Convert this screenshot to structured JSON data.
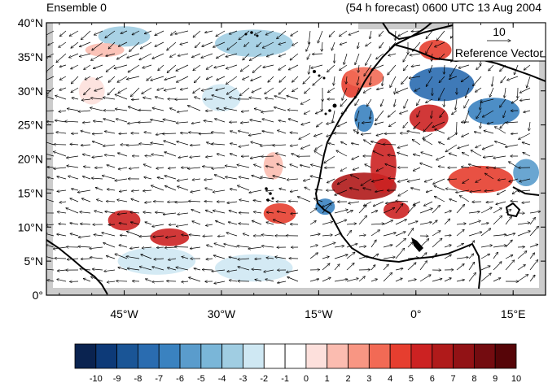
{
  "title_left": "Ensemble 0",
  "title_right": "(54 h forecast) 0600 UTC 13 Aug 2004",
  "reference_vector": {
    "value": "10",
    "label": "Reference Vector"
  },
  "axes": {
    "lat_ticks": [
      "40°N",
      "35°N",
      "30°N",
      "25°N",
      "20°N",
      "15°N",
      "10°N",
      "5°N",
      "0°"
    ],
    "lon_ticks": [
      "45°W",
      "30°W",
      "15°W",
      "0°",
      "15°E"
    ],
    "lon_range": [
      -57,
      20
    ],
    "lat_range": [
      0,
      40
    ]
  },
  "colorbar": {
    "labels": [
      "-10",
      "-9",
      "-8",
      "-7",
      "-6",
      "-5",
      "-4",
      "-3",
      "-2",
      "-1",
      "0",
      "1",
      "2",
      "3",
      "4",
      "5",
      "6",
      "7",
      "8",
      "9",
      "10"
    ],
    "colors": [
      "#0a2350",
      "#0d3a78",
      "#1a5596",
      "#2a6cb0",
      "#3a82c0",
      "#5a9ccc",
      "#7ab6d8",
      "#a0cde2",
      "#cfe8f3",
      "#ffffff",
      "#ffffff",
      "#fde0dc",
      "#fbbcb0",
      "#f89683",
      "#f26a55",
      "#e63e2f",
      "#cc2222",
      "#b01a1a",
      "#921215",
      "#740c10",
      "#560508"
    ]
  },
  "shaded_regions": [
    {
      "lon": -45,
      "lat": 11,
      "rlon": 2.5,
      "rlat": 1.5,
      "color": "#cc2222"
    },
    {
      "lon": -38,
      "lat": 8.5,
      "rlon": 3,
      "rlat": 1.3,
      "color": "#cc2222"
    },
    {
      "lon": -21,
      "lat": 12,
      "rlon": 2.5,
      "rlat": 1.5,
      "color": "#e63e2f"
    },
    {
      "lon": -10,
      "lat": 31,
      "rlon": 1.5,
      "rlat": 2,
      "color": "#e63e2f"
    },
    {
      "lon": -8,
      "lat": 16,
      "rlon": 5,
      "rlat": 2,
      "color": "#b01a1a"
    },
    {
      "lon": -5,
      "lat": 19,
      "rlon": 2,
      "rlat": 4,
      "color": "#cc2222"
    },
    {
      "lon": -3,
      "lat": 12.5,
      "rlon": 2,
      "rlat": 1.3,
      "color": "#cc2222"
    },
    {
      "lon": 2,
      "lat": 26,
      "rlon": 3,
      "rlat": 2,
      "color": "#cc2222"
    },
    {
      "lon": 10,
      "lat": 17,
      "rlon": 5,
      "rlat": 2,
      "color": "#e63e2f"
    },
    {
      "lon": -22,
      "lat": 19,
      "rlon": 1.5,
      "rlat": 2,
      "color": "#fbbcb0"
    },
    {
      "lon": -8,
      "lat": 32,
      "rlon": 3,
      "rlat": 1.5,
      "color": "#f26a55"
    },
    {
      "lon": 3,
      "lat": 36,
      "rlon": 2.5,
      "rlat": 1.5,
      "color": "#e63e2f"
    },
    {
      "lon": 4,
      "lat": 31,
      "rlon": 5,
      "rlat": 2.5,
      "color": "#2a6cb0"
    },
    {
      "lon": 12,
      "lat": 27,
      "rlon": 4,
      "rlat": 2,
      "color": "#3a82c0"
    },
    {
      "lon": -8,
      "lat": 26,
      "rlon": 1.5,
      "rlat": 2,
      "color": "#3a82c0"
    },
    {
      "lon": -14,
      "lat": 13,
      "rlon": 1.5,
      "rlat": 1.2,
      "color": "#3a82c0"
    },
    {
      "lon": 17,
      "lat": 18,
      "rlon": 2,
      "rlat": 2,
      "color": "#5a9ccc"
    },
    {
      "lon": -25,
      "lat": 37,
      "rlon": 6,
      "rlat": 2,
      "color": "#a0cde2"
    },
    {
      "lon": -45,
      "lat": 38,
      "rlon": 4,
      "rlat": 1.5,
      "color": "#a0cde2"
    },
    {
      "lon": -30,
      "lat": 29,
      "rlon": 3,
      "rlat": 2,
      "color": "#cfe8f3"
    },
    {
      "lon": -40,
      "lat": 5,
      "rlon": 6,
      "rlat": 2,
      "color": "#cfe8f3"
    },
    {
      "lon": -25,
      "lat": 4,
      "rlon": 6,
      "rlat": 2,
      "color": "#cfe8f3"
    },
    {
      "lon": -50,
      "lat": 30,
      "rlon": 2,
      "rlat": 2,
      "color": "#fde0dc"
    },
    {
      "lon": -48,
      "lat": 36,
      "rlon": 3,
      "rlat": 1,
      "color": "#fbbcb0"
    }
  ]
}
